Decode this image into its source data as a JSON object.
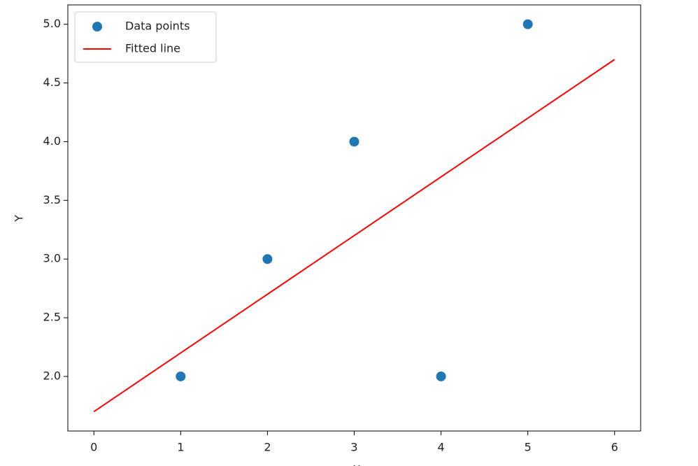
{
  "chart_data": {
    "type": "scatter",
    "xlabel": "X",
    "ylabel": "Y",
    "series": [
      {
        "name": "Data points",
        "color": "#1f77b4",
        "kind": "scatter",
        "x": [
          1,
          2,
          3,
          4,
          5
        ],
        "values": [
          2,
          3,
          4,
          2,
          5
        ]
      },
      {
        "name": "Fitted line",
        "color": "#ff0000",
        "kind": "line",
        "x": [
          0,
          6
        ],
        "values": [
          1.7,
          4.7
        ]
      }
    ],
    "xlim": [
      -0.3,
      6.3
    ],
    "xticks": [
      0,
      1,
      2,
      3,
      4,
      5,
      6
    ],
    "ylim": [
      1.535,
      5.165
    ],
    "yticks": [
      {
        "value": 2,
        "label": "2.0"
      },
      {
        "value": 2.5,
        "label": "2.5"
      },
      {
        "value": 3,
        "label": "3.0"
      },
      {
        "value": 3.5,
        "label": "3.5"
      },
      {
        "value": 4,
        "label": "4.0"
      },
      {
        "value": 4.5,
        "label": "4.5"
      },
      {
        "value": 5,
        "label": "5.0"
      }
    ],
    "grid": false,
    "legend": "upper left"
  }
}
